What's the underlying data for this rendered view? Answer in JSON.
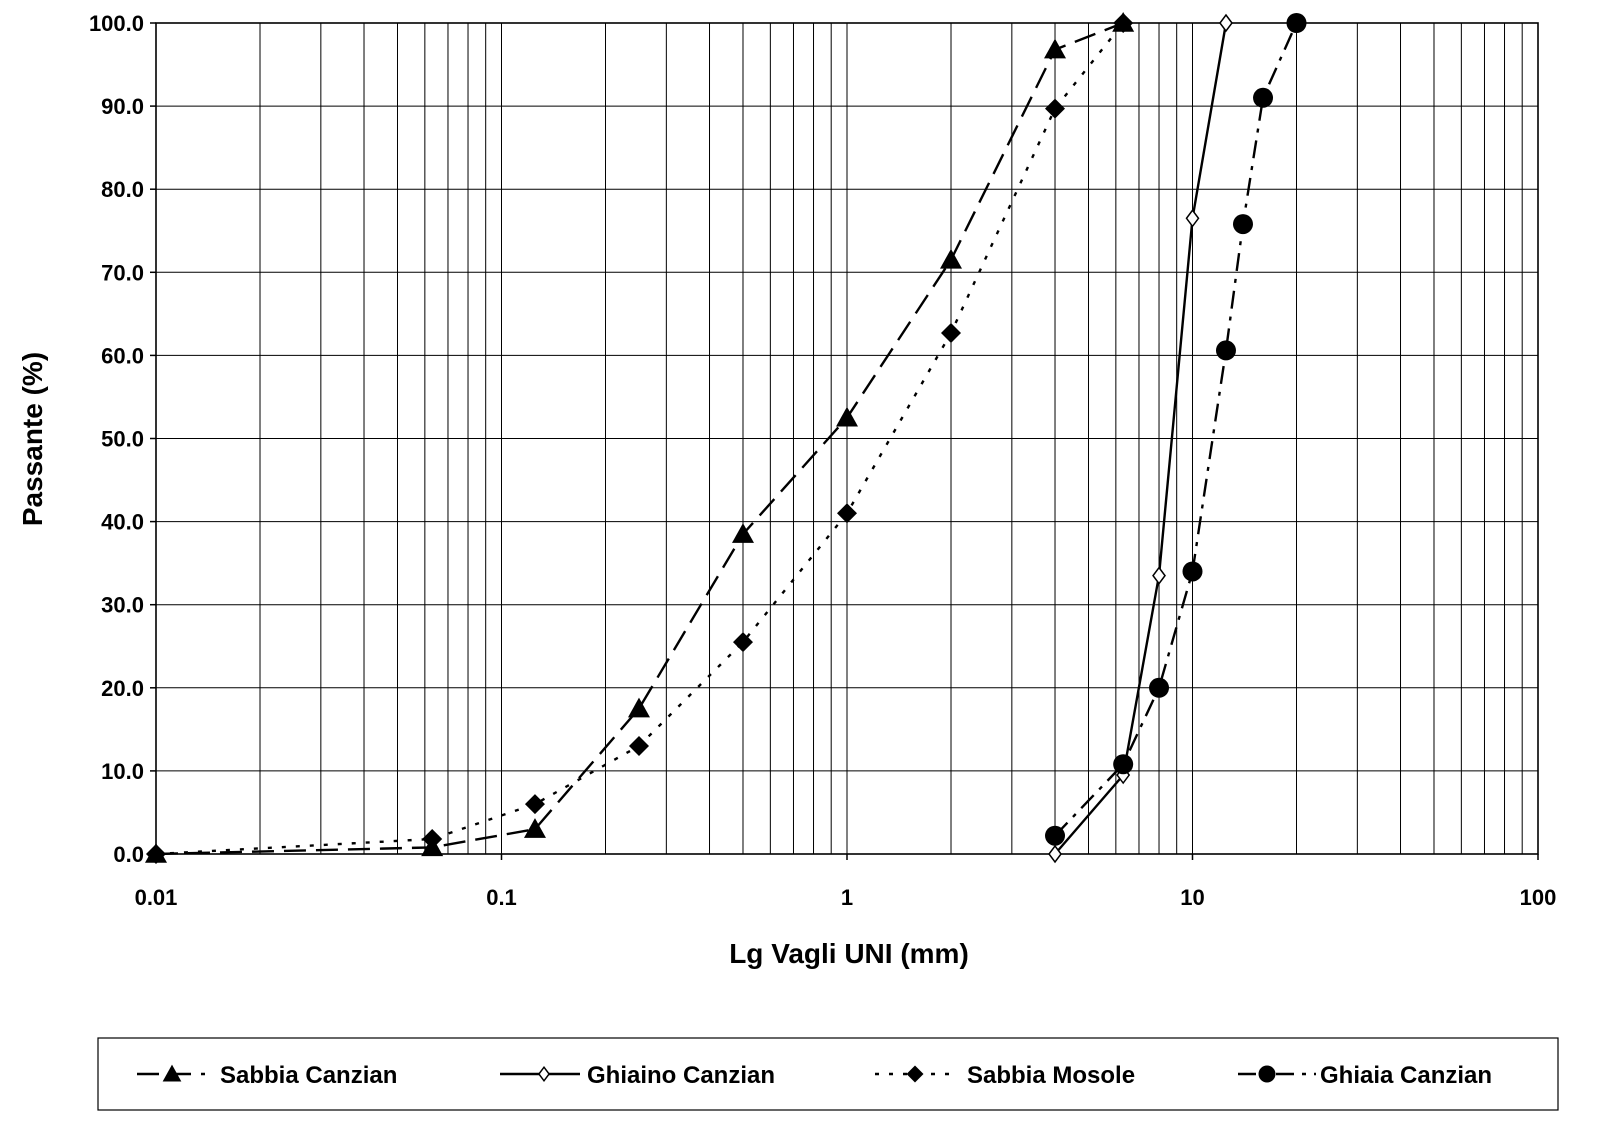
{
  "chart_data": {
    "type": "line",
    "xlabel": "Lg Vagli UNI (mm)",
    "ylabel": "Passante (%)",
    "xscale": "log",
    "xlim": [
      0.01,
      100
    ],
    "ylim": [
      0,
      100
    ],
    "x_tick_labels": [
      "0.01",
      "0.1",
      "1",
      "10",
      "100"
    ],
    "y_tick_labels": [
      "0.0",
      "10.0",
      "20.0",
      "30.0",
      "40.0",
      "50.0",
      "60.0",
      "70.0",
      "80.0",
      "90.0",
      "100.0"
    ],
    "grid": true,
    "legend_position": "bottom",
    "series": [
      {
        "name": "Sabbia Canzian",
        "marker": "filled-triangle",
        "line_style": "long-dash",
        "x": [
          0.01,
          0.063,
          0.125,
          0.25,
          0.5,
          1,
          2,
          4,
          6.3
        ],
        "y": [
          0.0,
          0.8,
          3.0,
          17.5,
          38.5,
          52.5,
          71.5,
          96.8,
          100.0
        ]
      },
      {
        "name": "Ghiaino Canzian",
        "marker": "open-diamond",
        "line_style": "solid",
        "x": [
          4,
          6.3,
          8,
          10,
          12.5
        ],
        "y": [
          0.0,
          9.5,
          33.5,
          76.5,
          100.0
        ]
      },
      {
        "name": "Sabbia Mosole",
        "marker": "filled-diamond",
        "line_style": "dotted",
        "x": [
          0.01,
          0.063,
          0.125,
          0.25,
          0.5,
          1,
          2,
          4,
          6.3
        ],
        "y": [
          0.0,
          1.8,
          6.0,
          13.0,
          25.5,
          41.0,
          62.7,
          89.7,
          100.0
        ]
      },
      {
        "name": "Ghiaia Canzian",
        "marker": "filled-circle",
        "line_style": "dash-dot",
        "x": [
          4,
          6.3,
          8,
          10,
          12.5,
          14,
          16,
          20
        ],
        "y": [
          2.2,
          10.8,
          20.0,
          34.0,
          60.6,
          75.8,
          91.0,
          100.0
        ]
      }
    ]
  }
}
